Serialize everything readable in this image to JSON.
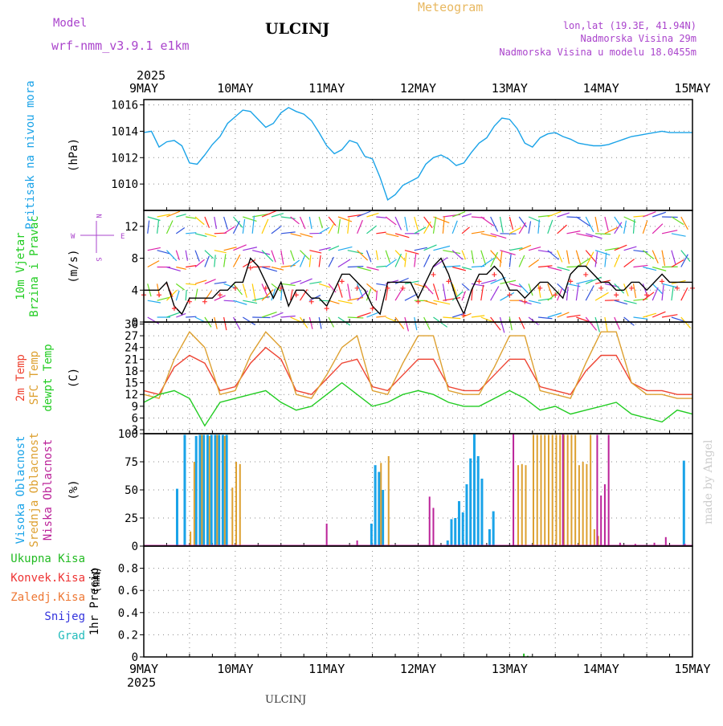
{
  "header": {
    "model_label": "Model",
    "model_name": "wrf-nmm_v3.9.1 e1km",
    "station": "ULCINJ",
    "product": "Meteogram",
    "lonlat": "lon,lat (19.3E, 41.94N)",
    "elevation": "Nadmorska Visina 29m",
    "model_elevation": "Nadmorska Visina u modelu 18.0455m",
    "watermark": "made by Angel",
    "footer_station": "ULCINJ",
    "year": "2025"
  },
  "colors": {
    "pressure": "#1aa3e8",
    "temp2m": "#ee4433",
    "sfc": "#dda030",
    "dewpt": "#22cc22",
    "high_cloud": "#1aa3e8",
    "mid_cloud": "#dda030",
    "low_cloud": "#bb2299",
    "total_precip": "#22bb22",
    "convective": "#ee3333",
    "stratiform": "#ee7733",
    "snow": "#3333dd",
    "graupel": "#22bbbb",
    "header_magenta": "#aa44cc",
    "header_orange": "#e8b860",
    "wind_legend": "#aa44cc"
  },
  "x_axis": {
    "day_labels": [
      "9MAY",
      "10MAY",
      "11MAY",
      "12MAY",
      "13MAY",
      "14MAY",
      "15MAY"
    ],
    "hours_total": 144
  },
  "chart_data": [
    {
      "type": "line",
      "name": "pressure",
      "ylabel_lines": [
        "Pritisak na nivou mora"
      ],
      "unit": "(hPa)",
      "ylim": [
        1008,
        1016.4
      ],
      "yticks": [
        1010,
        1012,
        1014,
        1016
      ],
      "series": [
        {
          "name": "Pritisak na nivou mora",
          "color_key": "pressure",
          "x": [
            0,
            2,
            4,
            6,
            8,
            10,
            12,
            14,
            16,
            18,
            20,
            22,
            24,
            26,
            28,
            30,
            32,
            34,
            36,
            38,
            40,
            42,
            44,
            46,
            48,
            50,
            52,
            54,
            56,
            58,
            60,
            62,
            64,
            66,
            68,
            70,
            72,
            74,
            76,
            78,
            80,
            82,
            84,
            86,
            88,
            90,
            92,
            94,
            96,
            98,
            100,
            102,
            104,
            106,
            108,
            110,
            112,
            114,
            116,
            118,
            120,
            122,
            124,
            126,
            128,
            130,
            132,
            134,
            136,
            138,
            140,
            142,
            144
          ],
          "y": [
            1013.9,
            1014.0,
            1012.8,
            1013.2,
            1013.3,
            1012.9,
            1011.6,
            1011.5,
            1012.2,
            1013.0,
            1013.6,
            1014.6,
            1015.1,
            1015.6,
            1015.5,
            1014.9,
            1014.3,
            1014.6,
            1015.4,
            1015.8,
            1015.5,
            1015.3,
            1014.8,
            1013.9,
            1012.9,
            1012.3,
            1012.6,
            1013.3,
            1013.1,
            1012.1,
            1011.9,
            1010.5,
            1008.8,
            1009.2,
            1009.9,
            1010.2,
            1010.5,
            1011.5,
            1012.0,
            1012.2,
            1011.9,
            1011.4,
            1011.6,
            1012.4,
            1013.1,
            1013.5,
            1014.4,
            1015.0,
            1014.9,
            1014.2,
            1013.1,
            1012.8,
            1013.5,
            1013.8,
            1013.9,
            1013.6,
            1013.4,
            1013.1,
            1013.0,
            1012.9,
            1012.9,
            1013.0,
            1013.2,
            1013.4,
            1013.6,
            1013.7,
            1013.8,
            1013.9,
            1014.0,
            1013.9,
            1013.9,
            1013.9,
            1013.9
          ]
        }
      ]
    },
    {
      "type": "line",
      "name": "wind",
      "ylabel_lines": [
        "10m Vjetar",
        "Brzina i Pravac"
      ],
      "unit": "(m/s)",
      "ylim": [
        0,
        14
      ],
      "yticks": [
        0,
        4,
        8,
        12
      ],
      "compass": {
        "n": "N",
        "e": "E",
        "w": "W",
        "s": "S"
      },
      "series": [
        {
          "name": "wind speed",
          "color": "#000000",
          "x": [
            0,
            2,
            4,
            6,
            8,
            10,
            12,
            14,
            16,
            18,
            20,
            22,
            24,
            26,
            28,
            30,
            32,
            34,
            36,
            38,
            40,
            42,
            44,
            46,
            48,
            50,
            52,
            54,
            56,
            58,
            60,
            62,
            64,
            66,
            68,
            70,
            72,
            74,
            76,
            78,
            80,
            82,
            84,
            86,
            88,
            90,
            92,
            94,
            96,
            98,
            100,
            102,
            104,
            106,
            108,
            110,
            112,
            114,
            116,
            118,
            120,
            122,
            124,
            126,
            128,
            130,
            132,
            134,
            136,
            138,
            140,
            142,
            144
          ],
          "y": [
            4,
            4,
            4,
            5,
            2,
            1,
            3,
            3,
            3,
            3,
            4,
            4,
            5,
            5,
            8,
            7,
            5,
            3,
            5,
            2,
            4,
            4,
            3,
            3,
            2,
            4,
            6,
            6,
            5,
            4,
            2,
            1,
            5,
            5,
            5,
            5,
            3,
            5,
            7,
            8,
            6,
            3,
            1,
            4,
            6,
            6,
            7,
            6,
            4,
            4,
            3,
            4,
            5,
            5,
            4,
            3,
            6,
            7,
            7,
            6,
            5,
            5,
            4,
            4,
            5,
            5,
            4,
            5,
            6,
            5,
            5,
            5,
            5
          ]
        }
      ]
    },
    {
      "type": "line",
      "name": "temperature",
      "ylabel_lines": [
        "2m Temp",
        "SFC Temp",
        "dewpt Temp"
      ],
      "unit": "(C)",
      "ylim": [
        2,
        30.5
      ],
      "yticks": [
        3,
        6,
        9,
        12,
        15,
        18,
        21,
        24,
        27,
        30
      ],
      "series": [
        {
          "name": "2m Temp",
          "color_key": "temp2m",
          "x": [
            0,
            4,
            8,
            12,
            16,
            20,
            24,
            28,
            32,
            36,
            40,
            44,
            48,
            52,
            56,
            60,
            64,
            68,
            72,
            76,
            80,
            84,
            88,
            92,
            96,
            100,
            104,
            108,
            112,
            116,
            120,
            124,
            128,
            132,
            136,
            140,
            144
          ],
          "y": [
            13,
            12,
            19,
            22,
            20,
            13,
            14,
            20,
            24,
            21,
            13,
            12,
            16,
            20,
            21,
            14,
            13,
            17,
            21,
            21,
            14,
            13,
            13,
            17,
            21,
            21,
            14,
            13,
            12,
            18,
            22,
            22,
            15,
            13,
            13,
            12,
            12
          ]
        },
        {
          "name": "SFC Temp",
          "color_key": "sfc",
          "x": [
            0,
            4,
            8,
            12,
            16,
            20,
            24,
            28,
            32,
            36,
            40,
            44,
            48,
            52,
            56,
            60,
            64,
            68,
            72,
            76,
            80,
            84,
            88,
            92,
            96,
            100,
            104,
            108,
            112,
            116,
            120,
            124,
            128,
            132,
            136,
            140,
            144
          ],
          "y": [
            12,
            11,
            21,
            28,
            24,
            12,
            13,
            22,
            28,
            24,
            12,
            11,
            17,
            24,
            27,
            13,
            12,
            20,
            27,
            27,
            13,
            12,
            12,
            19,
            27,
            27,
            13,
            12,
            11,
            20,
            28,
            28,
            15,
            12,
            12,
            11,
            11
          ]
        },
        {
          "name": "dewpt Temp",
          "color_key": "dewpt",
          "x": [
            0,
            4,
            8,
            12,
            16,
            20,
            24,
            28,
            32,
            36,
            40,
            44,
            48,
            52,
            56,
            60,
            64,
            68,
            72,
            76,
            80,
            84,
            88,
            92,
            96,
            100,
            104,
            108,
            112,
            116,
            120,
            124,
            128,
            132,
            136,
            140,
            144
          ],
          "y": [
            10,
            12,
            13,
            11,
            4,
            10,
            11,
            12,
            13,
            10,
            8,
            9,
            12,
            15,
            12,
            9,
            10,
            12,
            13,
            12,
            10,
            9,
            9,
            11,
            13,
            11,
            8,
            9,
            7,
            8,
            9,
            10,
            7,
            6,
            5,
            8,
            7
          ]
        }
      ]
    },
    {
      "type": "bar",
      "name": "clouds",
      "ylabel_lines": [
        "Visoka Oblacnost",
        "Srednja Oblacnost",
        "Niska Oblacnost"
      ],
      "unit": "(%)",
      "ylim": [
        0,
        100
      ],
      "yticks": [
        0,
        25,
        50,
        75,
        100
      ],
      "series": [
        {
          "name": "Visoka Oblacnost",
          "color_key": "high_cloud",
          "x": [
            9,
            11,
            14,
            15,
            16,
            17,
            18,
            19,
            20,
            21,
            22,
            60,
            61,
            62,
            63,
            80,
            81,
            82,
            83,
            84,
            85,
            86,
            87,
            88,
            89,
            91,
            92,
            142
          ],
          "y": [
            51,
            99,
            98,
            99,
            99,
            99,
            99,
            99,
            99,
            99,
            99,
            20,
            72,
            66,
            50,
            5,
            24,
            25,
            40,
            30,
            55,
            78,
            100,
            80,
            60,
            15,
            31,
            76
          ]
        },
        {
          "name": "Srednja Oblacnost",
          "color_key": "mid_cloud",
          "x": [
            12,
            13,
            15,
            17,
            19,
            21,
            23,
            24,
            25,
            62,
            64,
            98,
            99,
            100,
            102,
            103,
            104,
            105,
            106,
            107,
            108,
            109,
            110,
            111,
            112,
            113,
            114,
            115,
            116,
            117,
            118,
            119
          ],
          "y": [
            13,
            75,
            99,
            98,
            99,
            98,
            52,
            75,
            73,
            74,
            80,
            72,
            73,
            72,
            99,
            99,
            99,
            99,
            99,
            99,
            99,
            99,
            99,
            99,
            99,
            99,
            72,
            75,
            73,
            99,
            15,
            9
          ]
        },
        {
          "name": "Niska Oblacnost",
          "color_key": "low_cloud",
          "x": [
            48,
            56,
            75,
            76,
            97,
            110,
            119,
            120,
            121,
            122,
            125,
            129,
            134,
            137,
            142
          ],
          "y": [
            20,
            5,
            44,
            34,
            100,
            100,
            99,
            45,
            55,
            99,
            3,
            2,
            3,
            8,
            2
          ]
        }
      ]
    },
    {
      "type": "bar",
      "name": "precipitation",
      "ylabel_lines": [
        "1hr Precip"
      ],
      "unit": "(mm)",
      "ylim": [
        0,
        1.0
      ],
      "yticks": [
        0,
        0.2,
        0.4,
        0.6,
        0.8
      ],
      "legend": [
        "Ukupna Kisa",
        "Konvek.Kisa",
        "Zaledj.Kisa",
        "Snijeg",
        "Grad"
      ],
      "series": [
        {
          "name": "Ukupna Kisa",
          "color_key": "total_precip",
          "x": [
            100,
            101,
            102
          ],
          "y": [
            0.03,
            0.01,
            0.005
          ]
        }
      ]
    }
  ]
}
